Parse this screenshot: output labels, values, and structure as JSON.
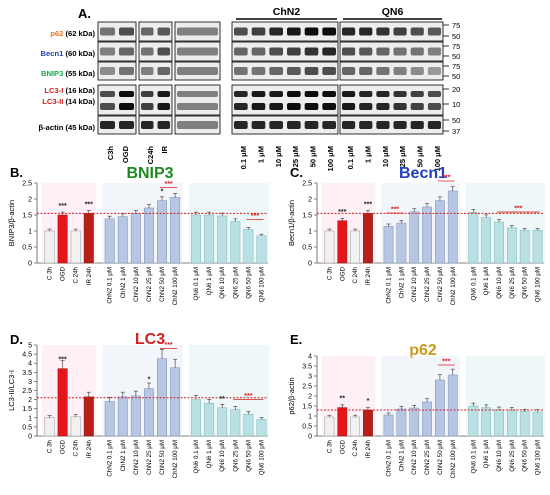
{
  "blot": {
    "panel": "A.",
    "groups": [
      "ChN2",
      "QN6"
    ],
    "rows": [
      {
        "parts": [
          {
            "text": "p62",
            "color": "#e8761f"
          },
          {
            "text": " (62 kDa)",
            "color": "#000000"
          }
        ]
      },
      {
        "parts": [
          {
            "text": "Becn1",
            "color": "#1f3fbf"
          },
          {
            "text": " (60 kDa)",
            "color": "#000000"
          }
        ]
      },
      {
        "parts": [
          {
            "text": "BNIP3",
            "color": "#1aa64a"
          },
          {
            "text": " (55 kDa)",
            "color": "#000000"
          }
        ]
      },
      {
        "parts": [
          {
            "text": "LC3-I",
            "color": "#d42020"
          },
          {
            "text": " (16 kDa)",
            "color": "#000000"
          }
        ]
      },
      {
        "parts": [
          {
            "text": "LC3-II",
            "color": "#d42020"
          },
          {
            "text": " (14 kDa)",
            "color": "#000000"
          }
        ]
      },
      {
        "parts": [
          {
            "text": "β-actin (45 kDa)",
            "color": "#000000"
          }
        ]
      }
    ],
    "markers": [
      "75",
      "50",
      "75",
      "50",
      "75",
      "50",
      "20",
      "10",
      "50",
      "37"
    ],
    "lanes_control": [
      "C3h",
      "OGD",
      "C24h",
      "IR"
    ],
    "lanes_doses": [
      "0.1 μM",
      "1 μM",
      "10 μM",
      "25 μM",
      "50 μM",
      "100 μM"
    ]
  },
  "chart_data": [
    {
      "panel": "B.",
      "type": "bar",
      "title": "BNIP3",
      "title_color": "#1f8a1f",
      "ylabel": "BNIP3/β-actin",
      "ylim": [
        0,
        2.5
      ],
      "yticks": [
        "0",
        "0.5",
        "1",
        "1.5",
        "2",
        "2.5"
      ],
      "ref_line": 1.55,
      "categories": [
        "C 3h",
        "OGD",
        "C 24h",
        "IR 24h",
        "ChN2 0.1 μM",
        "ChN2 1 μM",
        "ChN2 10 μM",
        "ChN2 25 μM",
        "ChN2 50 μM",
        "ChN2 100 μM",
        "QN6 0.1 μM",
        "QN6 1 μM",
        "QN6 10 μM",
        "QN6 25 μM",
        "QN6 50 μM",
        "QN6 100 μM"
      ],
      "values": [
        1.0,
        1.5,
        1.0,
        1.55,
        1.38,
        1.45,
        1.55,
        1.72,
        1.95,
        2.05,
        1.5,
        1.5,
        1.47,
        1.3,
        1.05,
        0.85
      ],
      "annotations": [
        {
          "i": 1,
          "text": "***"
        },
        {
          "i": 3,
          "text": "***"
        },
        {
          "i": 8,
          "text": "*"
        },
        {
          "i": 9,
          "text": "***",
          "bracket": [
            8,
            9
          ]
        },
        {
          "i": 14,
          "text": "***",
          "bracket": [
            14,
            15
          ]
        }
      ]
    },
    {
      "panel": "C.",
      "type": "bar",
      "title": "Becn1",
      "title_color": "#1f3fbf",
      "ylabel": "Becn1/β-actin",
      "ylim": [
        0,
        2.5
      ],
      "yticks": [
        "0",
        "0.5",
        "1",
        "1.5",
        "2",
        "2.5"
      ],
      "ref_line": 1.55,
      "categories": [
        "C 3h",
        "OGD",
        "C 24h",
        "IR 24h",
        "ChN2 0.1 μM",
        "ChN2 1 μM",
        "ChN2 10 μM",
        "ChN2 25 μM",
        "ChN2 50 μM",
        "ChN2 100 μM",
        "QN6 0.1 μM",
        "QN6 1 μM",
        "QN6 10 μM",
        "QN6 25 μM",
        "QN6 50 μM",
        "QN6 100 μM"
      ],
      "values": [
        1.0,
        1.32,
        1.0,
        1.55,
        1.15,
        1.25,
        1.6,
        1.75,
        1.95,
        2.25,
        1.58,
        1.42,
        1.28,
        1.1,
        1.02,
        1.02
      ],
      "annotations": [
        {
          "i": 1,
          "text": "***"
        },
        {
          "i": 3,
          "text": "***"
        },
        {
          "i": 4,
          "text": "***",
          "bracket": [
            4,
            5
          ]
        },
        {
          "i": 9,
          "text": "***",
          "bracket": [
            8,
            9
          ]
        },
        {
          "i": 13,
          "text": "***",
          "bracket": [
            12,
            15
          ]
        }
      ]
    },
    {
      "panel": "D.",
      "type": "bar",
      "title": "LC3",
      "title_color": "#d42020",
      "ylabel": "LC3-II/LC3-I",
      "ylim": [
        0,
        5
      ],
      "yticks": [
        "0",
        "0.5",
        "1",
        "1.5",
        "2",
        "2.5",
        "3",
        "3.5",
        "4",
        "4.5",
        "5"
      ],
      "ref_line": 2.1,
      "categories": [
        "C 3h",
        "OGD",
        "C 24h",
        "IR 24h",
        "ChN2 0.1 μM",
        "ChN2 1 μM",
        "ChN2 10 μM",
        "ChN2 25 μM",
        "ChN2 50 μM",
        "ChN2 100 μM",
        "QN6 0.1 μM",
        "QN6 1 μM",
        "QN6 10 μM",
        "QN6 25 μM",
        "QN6 50 μM",
        "QN6 100 μM"
      ],
      "values": [
        1.0,
        3.7,
        1.05,
        2.15,
        1.9,
        2.15,
        2.2,
        2.6,
        4.25,
        3.75,
        2.0,
        1.8,
        1.55,
        1.45,
        1.2,
        0.9
      ],
      "annotations": [
        {
          "i": 1,
          "text": "***"
        },
        {
          "i": 7,
          "text": "*"
        },
        {
          "i": 9,
          "text": "***",
          "bracket": [
            8,
            9
          ]
        },
        {
          "i": 12,
          "text": "**"
        },
        {
          "i": 14,
          "text": "***",
          "bracket": [
            13,
            15
          ]
        }
      ]
    },
    {
      "panel": "E.",
      "type": "bar",
      "title": "p62",
      "title_color": "#c99a1a",
      "ylabel": "p62/β-actin",
      "ylim": [
        0,
        4
      ],
      "yticks": [
        "0",
        "0.5",
        "1",
        "1.5",
        "2",
        "2.5",
        "3",
        "3.5",
        "4"
      ],
      "ref_line": 1.3,
      "categories": [
        "C 3h",
        "OGD",
        "C 24h",
        "IR 24h",
        "ChN2 0.1 μM",
        "ChN2 1 μM",
        "ChN2 10 μM",
        "ChN2 25 μM",
        "ChN2 50 μM",
        "ChN2 100 μM",
        "QN6 0.1 μM",
        "QN6 1 μM",
        "QN6 10 μM",
        "QN6 25 μM",
        "QN6 50 μM",
        "QN6 100 μM"
      ],
      "values": [
        0.95,
        1.42,
        0.95,
        1.3,
        1.05,
        1.35,
        1.4,
        1.7,
        2.8,
        3.05,
        1.5,
        1.42,
        1.32,
        1.3,
        1.22,
        1.2
      ],
      "annotations": [
        {
          "i": 1,
          "text": "**"
        },
        {
          "i": 3,
          "text": "*"
        },
        {
          "i": 9,
          "text": "***",
          "bracket": [
            8,
            9
          ]
        }
      ]
    }
  ]
}
